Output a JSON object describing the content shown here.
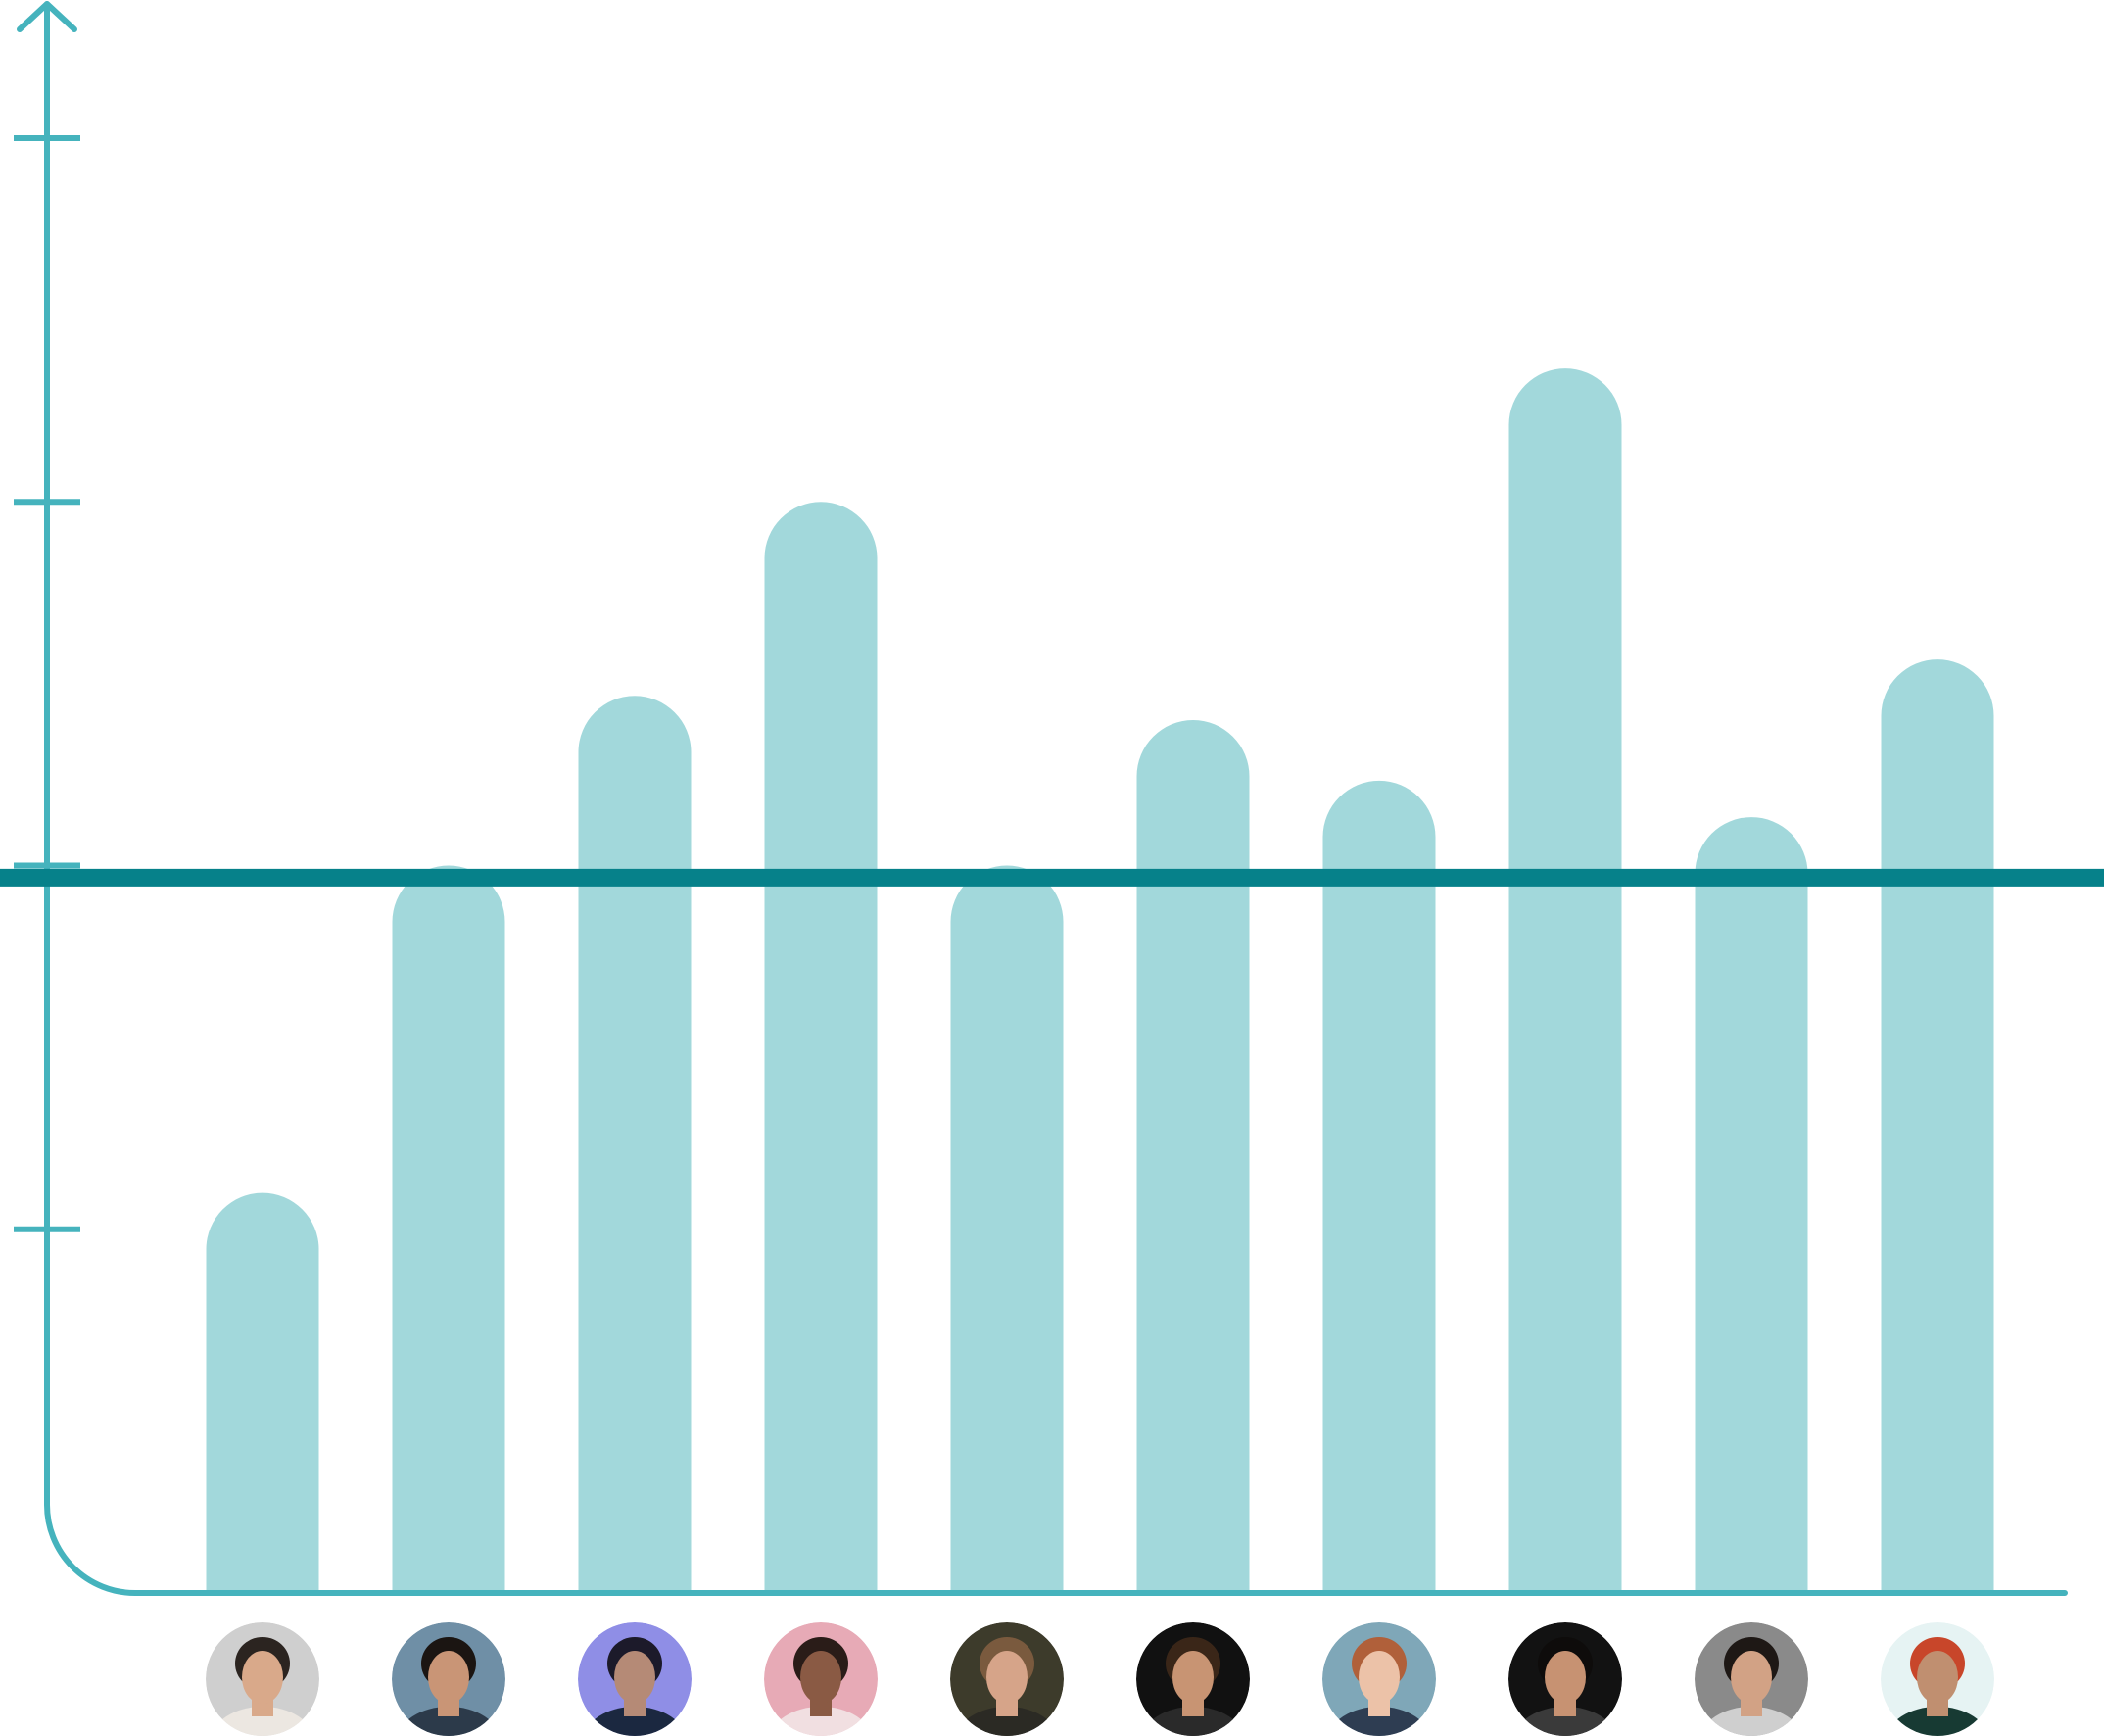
{
  "colors": {
    "bar": "#a2d8db",
    "axis": "#45b3bd",
    "threshold": "#06818a",
    "background": "#ffffff"
  },
  "avatars": [
    {
      "bg": "#cfcfcf",
      "skin": "#d9a98a",
      "hair": "#2b2420",
      "shirt": "#ece7e1"
    },
    {
      "bg": "#6f8fa6",
      "skin": "#c99576",
      "hair": "#1b1512",
      "shirt": "#2c3a4a"
    },
    {
      "bg": "#8f8ee6",
      "skin": "#b58a76",
      "hair": "#1c1a2a",
      "shirt": "#1b2840"
    },
    {
      "bg": "#e7aab6",
      "skin": "#8a5a44",
      "hair": "#2a1c18",
      "shirt": "#f1dfe1"
    },
    {
      "bg": "#3d3b2b",
      "skin": "#d6a489",
      "hair": "#7a5a3e",
      "shirt": "#2b2a24"
    },
    {
      "bg": "#111111",
      "skin": "#c89473",
      "hair": "#3a2618",
      "shirt": "#2a2a2a"
    },
    {
      "bg": "#7fa7b8",
      "skin": "#ecc2a8",
      "hair": "#b0603a",
      "shirt": "#2e3d52"
    },
    {
      "bg": "#121212",
      "skin": "#c79272",
      "hair": "#0e0c0b",
      "shirt": "#3a3a3a"
    },
    {
      "bg": "#8a8a8a",
      "skin": "#d2a285",
      "hair": "#1e1815",
      "shirt": "#cfcfcf"
    },
    {
      "bg": "#e6f3f3",
      "skin": "#c08f70",
      "hair": "#c8462a",
      "shirt": "#173a33"
    }
  ],
  "chart_data": {
    "type": "bar",
    "categories": [
      "",
      "",
      "",
      "",
      "",
      "",
      "",
      "",
      "",
      ""
    ],
    "values": [
      33,
      60,
      74,
      90,
      60,
      72,
      67,
      101,
      64,
      77
    ],
    "threshold": 59,
    "ylim": [
      0,
      120
    ],
    "yticks": [
      30,
      60,
      90,
      120
    ],
    "grid": false,
    "legend": "none",
    "title": "",
    "xlabel": "",
    "ylabel": ""
  }
}
